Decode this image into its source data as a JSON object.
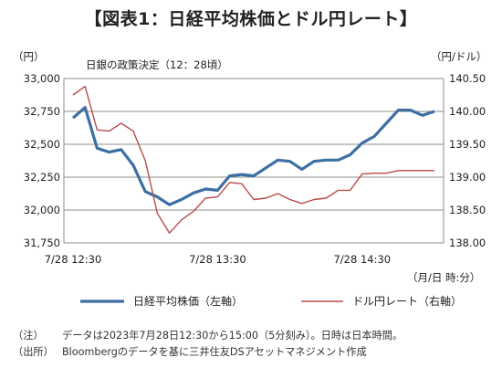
{
  "chart_data": {
    "type": "line",
    "title": "【図表1：日経平均株価とドル円レート】",
    "annotation": "日銀の政策決定（12：28頃）",
    "y_left_label": "（円）",
    "y_right_label": "（円/ドル）",
    "x_axis_unit": "（月/日 時:分）",
    "ylim_left": [
      31750,
      33000
    ],
    "ylim_right": [
      138.0,
      140.5
    ],
    "left_ticks": [
      "33,000",
      "32,750",
      "32,500",
      "32,250",
      "32,000",
      "31,750"
    ],
    "right_ticks": [
      "140.50",
      "140.00",
      "139.50",
      "139.00",
      "138.50",
      "138.00"
    ],
    "x_ticks": [
      "7/28 12:30",
      "7/28 13:30",
      "7/28 14:30"
    ],
    "x": [
      "12:30",
      "12:35",
      "12:40",
      "12:45",
      "12:50",
      "12:55",
      "13:00",
      "13:05",
      "13:10",
      "13:15",
      "13:20",
      "13:25",
      "13:30",
      "13:35",
      "13:40",
      "13:45",
      "13:50",
      "13:55",
      "14:00",
      "14:05",
      "14:10",
      "14:15",
      "14:20",
      "14:25",
      "14:30",
      "14:35",
      "14:40",
      "14:45",
      "14:50",
      "14:55",
      "15:00"
    ],
    "series": [
      {
        "name": "日経平均株価（左軸）",
        "axis": "left",
        "color": "#3d6fa3",
        "values": [
          32700,
          32780,
          32470,
          32440,
          32460,
          32340,
          32140,
          32100,
          32040,
          32080,
          32130,
          32160,
          32150,
          32260,
          32270,
          32260,
          32320,
          32380,
          32370,
          32310,
          32370,
          32380,
          32380,
          32420,
          32510,
          32560,
          32660,
          32760,
          32760,
          32720,
          32750
        ]
      },
      {
        "name": "ドル円レート（右軸）",
        "axis": "right",
        "color": "#b94a4a",
        "values": [
          140.25,
          140.38,
          139.72,
          139.7,
          139.82,
          139.7,
          139.25,
          138.45,
          138.15,
          138.35,
          138.48,
          138.68,
          138.7,
          138.92,
          138.9,
          138.66,
          138.68,
          138.75,
          138.66,
          138.6,
          138.66,
          138.68,
          138.8,
          138.8,
          139.05,
          139.06,
          139.06,
          139.1,
          139.1,
          139.1,
          139.1
        ]
      }
    ],
    "notes": [
      {
        "label": "（注）",
        "text": "データは2023年7月28日12:30から15:00（5分刻み）。日時は日本時間。"
      },
      {
        "label": "（出所）",
        "text": "Bloombergのデータを基に三井住友DSアセットマネジメント作成"
      }
    ]
  }
}
